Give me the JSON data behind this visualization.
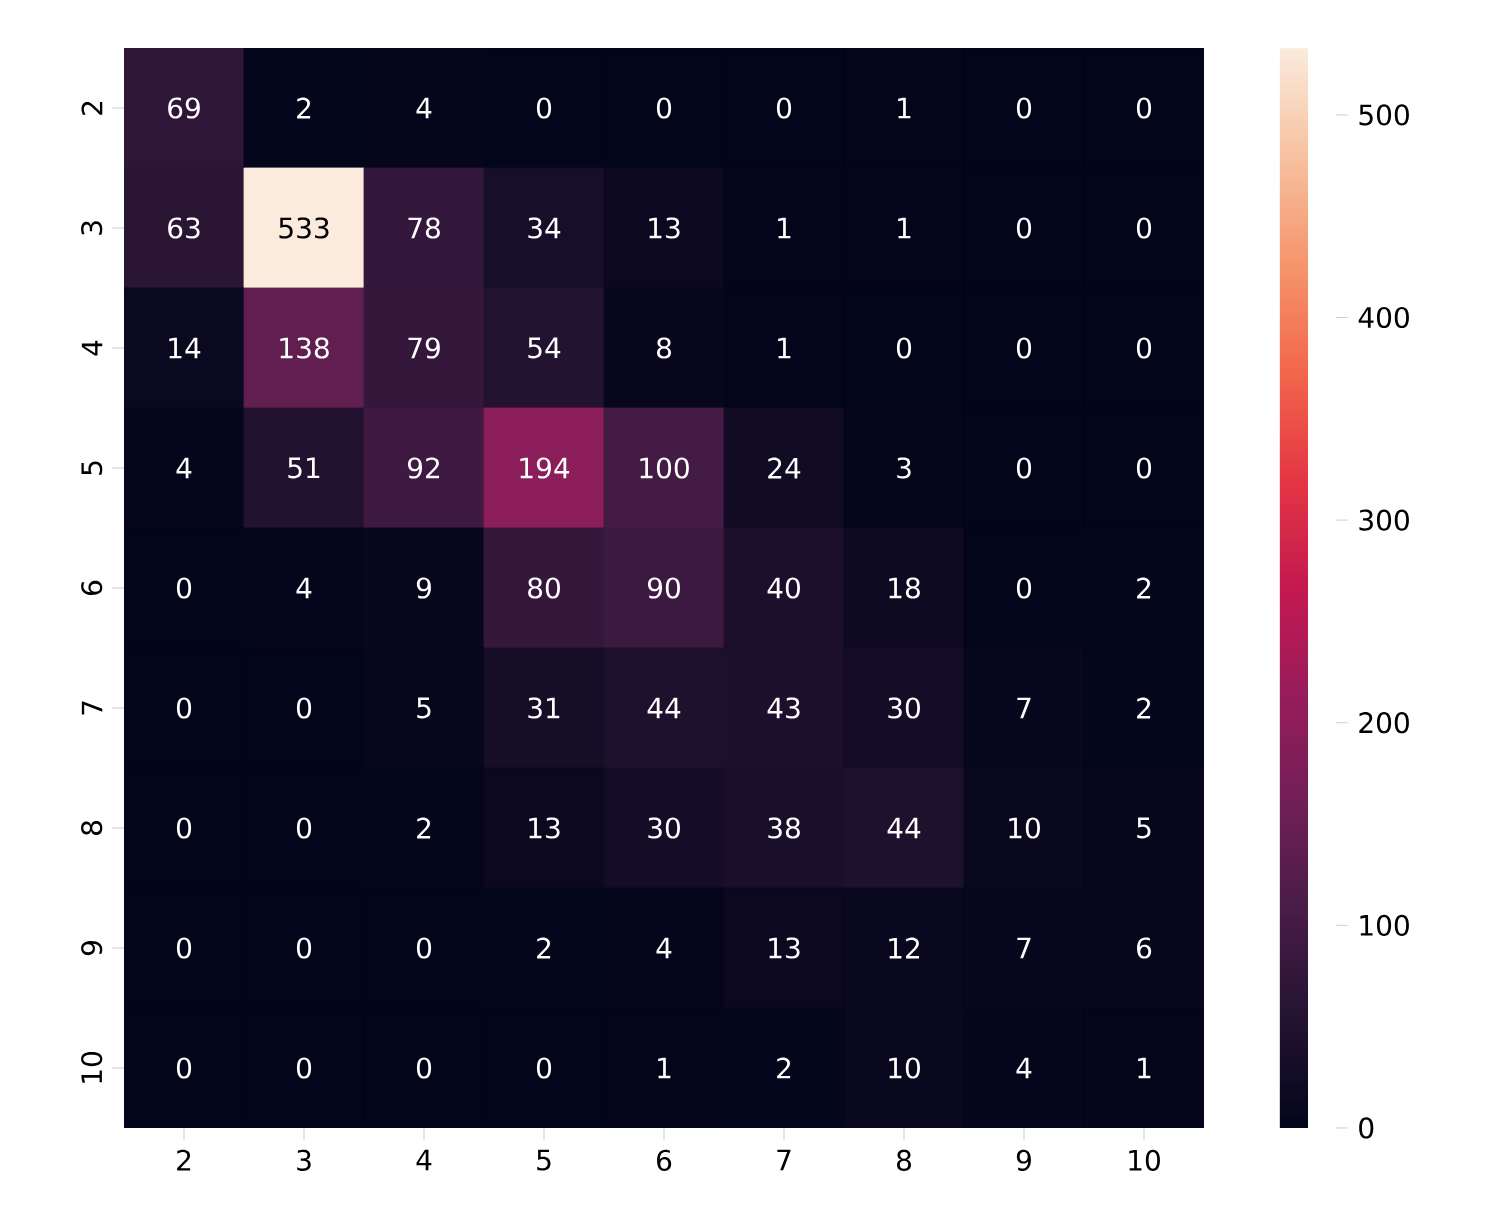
{
  "chart_data": {
    "type": "heatmap",
    "categories": [
      "2",
      "3",
      "4",
      "5",
      "6",
      "7",
      "8",
      "9",
      "10"
    ],
    "y_categories": [
      "2",
      "3",
      "4",
      "5",
      "6",
      "7",
      "8",
      "9",
      "10"
    ],
    "cells": [
      [
        69,
        2,
        4,
        0,
        0,
        0,
        1,
        0,
        0
      ],
      [
        63,
        533,
        78,
        34,
        13,
        1,
        1,
        0,
        0
      ],
      [
        14,
        138,
        79,
        54,
        8,
        1,
        0,
        0,
        0
      ],
      [
        4,
        51,
        92,
        194,
        100,
        24,
        3,
        0,
        0
      ],
      [
        0,
        4,
        9,
        80,
        90,
        40,
        18,
        0,
        2
      ],
      [
        0,
        0,
        5,
        31,
        44,
        43,
        30,
        7,
        2
      ],
      [
        0,
        0,
        2,
        13,
        30,
        38,
        44,
        10,
        5
      ],
      [
        0,
        0,
        0,
        2,
        4,
        13,
        12,
        7,
        6
      ],
      [
        0,
        0,
        0,
        0,
        1,
        2,
        10,
        4,
        1
      ]
    ],
    "data_labels": true,
    "clim": [
      0,
      533
    ],
    "cticks": [
      0,
      100,
      200,
      300,
      400,
      500
    ]
  }
}
